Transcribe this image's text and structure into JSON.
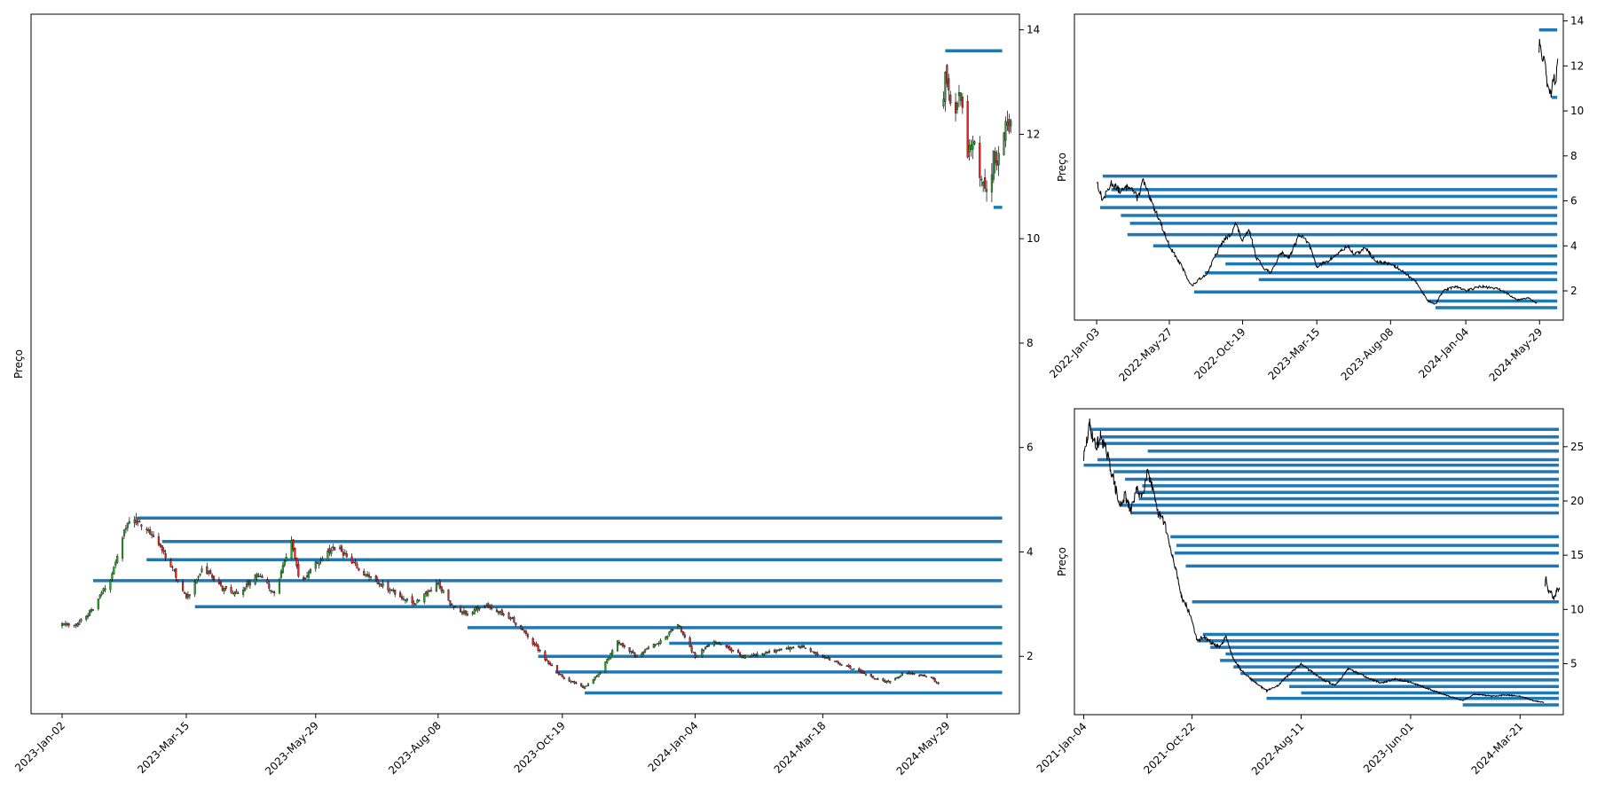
{
  "colors": {
    "level_line": "#1f77b4",
    "candle_up": "#2ca02c",
    "candle_down": "#d62728",
    "price_line": "#000000",
    "axes": "#000000"
  },
  "chart_data": [
    {
      "id": "main",
      "type": "candlestick",
      "ylabel": "Preço",
      "y_axis_side": "right",
      "ylim": [
        0.9,
        14.3
      ],
      "yticks": [
        2,
        4,
        6,
        8,
        10,
        12,
        14
      ],
      "x_start": "2022-12-15",
      "x_end": "2024-07-10",
      "xticks": [
        "2023-Jan-02",
        "2023-Mar-15",
        "2023-May-29",
        "2023-Aug-08",
        "2023-Oct-19",
        "2024-Jan-04",
        "2024-Mar-18",
        "2024-May-29"
      ],
      "series_path": [
        [
          "2023-01-02",
          2.6
        ],
        [
          "2023-01-10",
          2.6
        ],
        [
          "2023-01-20",
          2.9
        ],
        [
          "2023-01-30",
          3.5
        ],
        [
          "2023-02-08",
          4.5
        ],
        [
          "2023-02-15",
          4.6
        ],
        [
          "2023-02-25",
          4.3
        ],
        [
          "2023-03-08",
          3.6
        ],
        [
          "2023-03-15",
          3.1
        ],
        [
          "2023-03-25",
          3.7
        ],
        [
          "2023-04-05",
          3.3
        ],
        [
          "2023-04-15",
          3.2
        ],
        [
          "2023-04-25",
          3.6
        ],
        [
          "2023-05-05",
          3.2
        ],
        [
          "2023-05-15",
          4.2
        ],
        [
          "2023-05-20",
          3.4
        ],
        [
          "2023-05-29",
          3.8
        ],
        [
          "2023-06-10",
          4.1
        ],
        [
          "2023-06-25",
          3.6
        ],
        [
          "2023-07-10",
          3.3
        ],
        [
          "2023-07-25",
          3.0
        ],
        [
          "2023-08-08",
          3.4
        ],
        [
          "2023-08-15",
          3.0
        ],
        [
          "2023-08-25",
          2.8
        ],
        [
          "2023-09-05",
          3.0
        ],
        [
          "2023-09-20",
          2.7
        ],
        [
          "2023-10-01",
          2.3
        ],
        [
          "2023-10-10",
          1.9
        ],
        [
          "2023-10-19",
          1.6
        ],
        [
          "2023-11-01",
          1.4
        ],
        [
          "2023-11-10",
          1.7
        ],
        [
          "2023-11-20",
          2.3
        ],
        [
          "2023-12-01",
          2.0
        ],
        [
          "2023-12-15",
          2.3
        ],
        [
          "2023-12-25",
          2.6
        ],
        [
          "2024-01-04",
          2.0
        ],
        [
          "2024-01-15",
          2.3
        ],
        [
          "2024-02-01",
          2.0
        ],
        [
          "2024-02-20",
          2.1
        ],
        [
          "2024-03-05",
          2.2
        ],
        [
          "2024-03-18",
          2.0
        ],
        [
          "2024-04-01",
          1.8
        ],
        [
          "2024-04-15",
          1.6
        ],
        [
          "2024-04-25",
          1.5
        ],
        [
          "2024-05-05",
          1.7
        ],
        [
          "2024-05-20",
          1.6
        ],
        [
          "2024-05-26",
          1.4
        ]
      ],
      "series_path_2": [
        [
          "2024-05-27",
          12.6
        ],
        [
          "2024-05-28",
          13.2
        ],
        [
          "2024-06-02",
          12.2
        ],
        [
          "2024-06-06",
          12.9
        ],
        [
          "2024-06-10",
          11.6
        ],
        [
          "2024-06-14",
          11.9
        ],
        [
          "2024-06-18",
          11.1
        ],
        [
          "2024-06-22",
          10.8
        ],
        [
          "2024-06-25",
          11.6
        ],
        [
          "2024-06-27",
          11.3
        ],
        [
          "2024-06-29",
          12.2
        ],
        [
          "2024-07-02",
          12.1
        ],
        [
          "2024-07-05",
          12.2
        ]
      ],
      "levels": [
        {
          "start": "2023-02-15",
          "price": 4.65
        },
        {
          "start": "2023-03-01",
          "price": 4.2
        },
        {
          "start": "2023-02-20",
          "price": 3.85
        },
        {
          "start": "2023-01-20",
          "price": 3.45
        },
        {
          "start": "2023-03-20",
          "price": 2.95
        },
        {
          "start": "2023-08-25",
          "price": 2.55
        },
        {
          "start": "2023-12-20",
          "price": 2.25
        },
        {
          "start": "2023-10-05",
          "price": 2.0
        },
        {
          "start": "2023-10-15",
          "price": 1.7
        },
        {
          "start": "2023-11-01",
          "price": 1.3
        },
        {
          "start": "2024-05-28",
          "price": 13.6
        },
        {
          "start": "2024-06-25",
          "price": 10.6
        }
      ]
    },
    {
      "id": "top-right",
      "type": "line",
      "ylabel": "Preço",
      "y_axis_side": "right",
      "ylim": [
        0.7,
        14.3
      ],
      "yticks": [
        2,
        4,
        6,
        8,
        10,
        12,
        14
      ],
      "x_start": "2021-11-20",
      "x_end": "2024-07-15",
      "xticks": [
        "2022-Jan-03",
        "2022-May-27",
        "2022-Oct-19",
        "2023-Mar-15",
        "2023-Aug-08",
        "2024-Jan-04",
        "2024-May-29"
      ],
      "series_path": [
        [
          "2022-01-03",
          6.9
        ],
        [
          "2022-01-15",
          6.0
        ],
        [
          "2022-02-01",
          6.8
        ],
        [
          "2022-02-20",
          6.4
        ],
        [
          "2022-03-10",
          6.7
        ],
        [
          "2022-03-25",
          6.1
        ],
        [
          "2022-04-05",
          6.9
        ],
        [
          "2022-04-20",
          6.0
        ],
        [
          "2022-05-05",
          5.3
        ],
        [
          "2022-05-27",
          4.0
        ],
        [
          "2022-06-20",
          3.1
        ],
        [
          "2022-07-10",
          2.2
        ],
        [
          "2022-07-25",
          2.5
        ],
        [
          "2022-08-10",
          2.8
        ],
        [
          "2022-08-25",
          3.5
        ],
        [
          "2022-09-10",
          4.2
        ],
        [
          "2022-09-25",
          4.5
        ],
        [
          "2022-10-05",
          5.0
        ],
        [
          "2022-10-19",
          4.2
        ],
        [
          "2022-11-01",
          4.7
        ],
        [
          "2022-11-15",
          3.5
        ],
        [
          "2022-12-01",
          3.0
        ],
        [
          "2022-12-15",
          2.8
        ],
        [
          "2023-01-02",
          3.7
        ],
        [
          "2023-01-20",
          3.5
        ],
        [
          "2023-02-08",
          4.5
        ],
        [
          "2023-02-25",
          4.2
        ],
        [
          "2023-03-15",
          3.1
        ],
        [
          "2023-04-05",
          3.3
        ],
        [
          "2023-05-15",
          4.0
        ],
        [
          "2023-05-29",
          3.6
        ],
        [
          "2023-06-20",
          3.9
        ],
        [
          "2023-07-10",
          3.3
        ],
        [
          "2023-08-08",
          3.2
        ],
        [
          "2023-09-01",
          2.9
        ],
        [
          "2023-10-01",
          2.3
        ],
        [
          "2023-10-19",
          1.6
        ],
        [
          "2023-11-05",
          1.4
        ],
        [
          "2023-11-20",
          2.0
        ],
        [
          "2023-12-15",
          2.2
        ],
        [
          "2024-01-04",
          2.0
        ],
        [
          "2024-02-01",
          2.2
        ],
        [
          "2024-03-05",
          2.1
        ],
        [
          "2024-03-18",
          2.0
        ],
        [
          "2024-04-15",
          1.6
        ],
        [
          "2024-05-05",
          1.7
        ],
        [
          "2024-05-26",
          1.4
        ]
      ],
      "series_path_2": [
        [
          "2024-05-27",
          12.5
        ],
        [
          "2024-05-29",
          13.3
        ],
        [
          "2024-06-03",
          12.0
        ],
        [
          "2024-06-08",
          12.6
        ],
        [
          "2024-06-12",
          11.4
        ],
        [
          "2024-06-18",
          11.0
        ],
        [
          "2024-06-22",
          10.8
        ],
        [
          "2024-06-26",
          11.7
        ],
        [
          "2024-06-30",
          11.2
        ],
        [
          "2024-07-04",
          12.2
        ]
      ],
      "levels": [
        {
          "start": "2022-01-15",
          "price": 7.1
        },
        {
          "start": "2022-02-01",
          "price": 6.5
        },
        {
          "start": "2022-01-20",
          "price": 6.2
        },
        {
          "start": "2022-01-10",
          "price": 5.7
        },
        {
          "start": "2022-02-20",
          "price": 5.35
        },
        {
          "start": "2022-03-10",
          "price": 5.0
        },
        {
          "start": "2022-03-05",
          "price": 4.5
        },
        {
          "start": "2022-04-25",
          "price": 4.0
        },
        {
          "start": "2022-08-25",
          "price": 3.55
        },
        {
          "start": "2022-09-15",
          "price": 3.2
        },
        {
          "start": "2022-08-05",
          "price": 2.8
        },
        {
          "start": "2022-11-20",
          "price": 2.5
        },
        {
          "start": "2022-07-15",
          "price": 1.95
        },
        {
          "start": "2023-10-20",
          "price": 1.55
        },
        {
          "start": "2023-11-05",
          "price": 1.25
        },
        {
          "start": "2024-05-28",
          "price": 13.6
        },
        {
          "start": "2024-06-22",
          "price": 10.6
        }
      ]
    },
    {
      "id": "bottom-right",
      "type": "line",
      "ylabel": "Preço",
      "y_axis_side": "right",
      "ylim": [
        0.3,
        28.5
      ],
      "yticks": [
        5,
        10,
        15,
        20,
        25
      ],
      "x_start": "2020-12-10",
      "x_end": "2024-07-15",
      "xticks": [
        "2021-Jan-04",
        "2021-Oct-22",
        "2022-Aug-11",
        "2023-Jun-01",
        "2024-Mar-21"
      ],
      "series_path": [
        [
          "2021-01-04",
          24.0
        ],
        [
          "2021-01-20",
          27.0
        ],
        [
          "2021-02-05",
          25.0
        ],
        [
          "2021-02-20",
          26.0
        ],
        [
          "2021-03-10",
          24.0
        ],
        [
          "2021-03-25",
          22.0
        ],
        [
          "2021-04-10",
          19.5
        ],
        [
          "2021-04-25",
          20.5
        ],
        [
          "2021-05-10",
          19.0
        ],
        [
          "2021-05-25",
          21.0
        ],
        [
          "2021-06-10",
          20.5
        ],
        [
          "2021-06-25",
          23.0
        ],
        [
          "2021-07-05",
          21.5
        ],
        [
          "2021-07-20",
          19.0
        ],
        [
          "2021-08-10",
          18.0
        ],
        [
          "2021-08-25",
          15.5
        ],
        [
          "2021-09-10",
          13.5
        ],
        [
          "2021-09-25",
          11.0
        ],
        [
          "2021-10-05",
          10.5
        ],
        [
          "2021-10-22",
          9.0
        ],
        [
          "2021-11-05",
          7.0
        ],
        [
          "2021-11-20",
          7.5
        ],
        [
          "2021-12-10",
          7.0
        ],
        [
          "2022-01-05",
          6.5
        ],
        [
          "2022-01-20",
          7.5
        ],
        [
          "2022-02-10",
          5.5
        ],
        [
          "2022-03-01",
          4.5
        ],
        [
          "2022-04-01",
          3.5
        ],
        [
          "2022-05-10",
          2.5
        ],
        [
          "2022-06-10",
          3.0
        ],
        [
          "2022-07-10",
          4.0
        ],
        [
          "2022-08-11",
          5.0
        ],
        [
          "2022-09-10",
          4.2
        ],
        [
          "2022-10-10",
          3.5
        ],
        [
          "2022-11-10",
          3.0
        ],
        [
          "2022-12-15",
          4.5
        ],
        [
          "2023-01-20",
          4.0
        ],
        [
          "2023-02-20",
          3.5
        ],
        [
          "2023-03-15",
          3.2
        ],
        [
          "2023-04-20",
          3.6
        ],
        [
          "2023-06-01",
          3.3
        ],
        [
          "2023-07-10",
          2.8
        ],
        [
          "2023-08-25",
          2.2
        ],
        [
          "2023-10-19",
          1.6
        ],
        [
          "2023-11-20",
          2.2
        ],
        [
          "2024-01-04",
          2.0
        ],
        [
          "2024-02-15",
          2.1
        ],
        [
          "2024-03-21",
          2.0
        ],
        [
          "2024-04-25",
          1.6
        ],
        [
          "2024-05-26",
          1.4
        ]
      ],
      "series_path_2": [
        [
          "2024-05-27",
          12.0
        ],
        [
          "2024-05-29",
          13.2
        ],
        [
          "2024-06-05",
          11.5
        ],
        [
          "2024-06-12",
          11.8
        ],
        [
          "2024-06-20",
          10.9
        ],
        [
          "2024-06-28",
          11.8
        ],
        [
          "2024-07-05",
          12.0
        ]
      ],
      "levels": [
        {
          "start": "2021-01-20",
          "price": 26.6
        },
        {
          "start": "2021-02-20",
          "price": 25.9
        },
        {
          "start": "2021-02-05",
          "price": 25.3
        },
        {
          "start": "2021-06-25",
          "price": 24.6
        },
        {
          "start": "2021-02-10",
          "price": 23.8
        },
        {
          "start": "2021-01-04",
          "price": 23.3
        },
        {
          "start": "2021-03-25",
          "price": 22.7
        },
        {
          "start": "2021-04-25",
          "price": 22.0
        },
        {
          "start": "2021-06-10",
          "price": 21.4
        },
        {
          "start": "2021-05-25",
          "price": 20.8
        },
        {
          "start": "2021-06-01",
          "price": 20.2
        },
        {
          "start": "2021-04-10",
          "price": 19.6
        },
        {
          "start": "2021-05-10",
          "price": 18.9
        },
        {
          "start": "2021-08-25",
          "price": 16.7
        },
        {
          "start": "2021-09-10",
          "price": 15.9
        },
        {
          "start": "2021-09-05",
          "price": 15.2
        },
        {
          "start": "2021-10-05",
          "price": 14.0
        },
        {
          "start": "2021-10-22",
          "price": 10.7
        },
        {
          "start": "2021-11-20",
          "price": 7.7
        },
        {
          "start": "2021-11-05",
          "price": 7.1
        },
        {
          "start": "2021-12-10",
          "price": 6.5
        },
        {
          "start": "2022-01-20",
          "price": 5.9
        },
        {
          "start": "2022-01-05",
          "price": 5.3
        },
        {
          "start": "2022-02-10",
          "price": 4.7
        },
        {
          "start": "2022-03-01",
          "price": 4.1
        },
        {
          "start": "2022-04-01",
          "price": 3.5
        },
        {
          "start": "2022-07-10",
          "price": 2.9
        },
        {
          "start": "2022-08-11",
          "price": 2.3
        },
        {
          "start": "2022-05-10",
          "price": 1.8
        },
        {
          "start": "2023-10-19",
          "price": 1.2
        }
      ]
    }
  ]
}
